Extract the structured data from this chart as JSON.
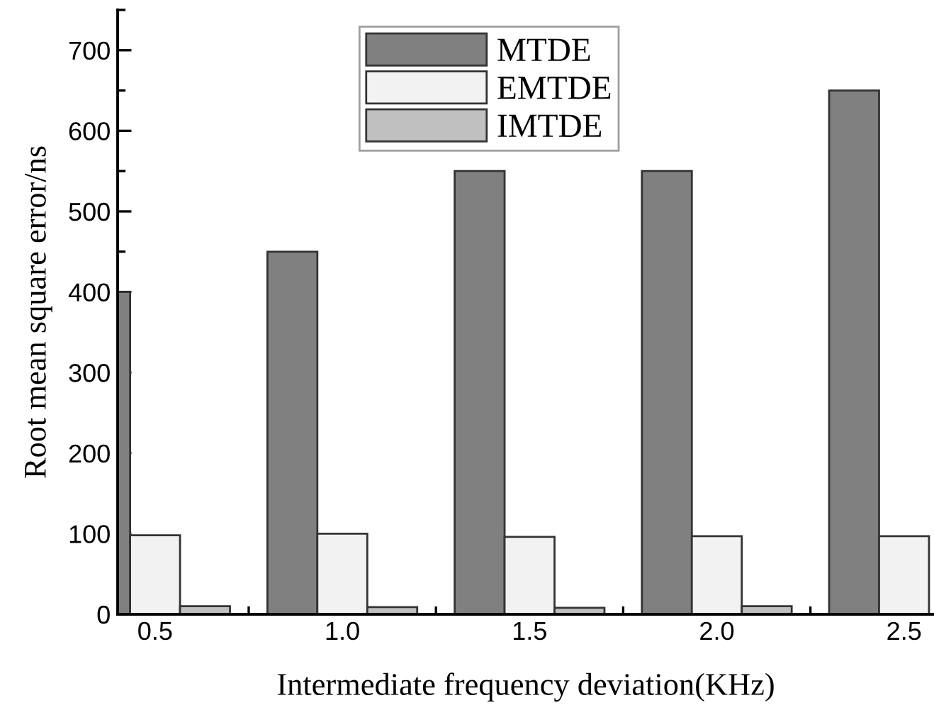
{
  "chart_data": {
    "type": "bar",
    "xlabel": "Intermediate frequency deviation(KHz)",
    "ylabel": "Root mean square error/ns",
    "x": [
      0.5,
      1.0,
      1.5,
      2.0,
      2.5
    ],
    "series": [
      {
        "name": "MTDE",
        "color": "#808080",
        "values": [
          400,
          450,
          550,
          550,
          650
        ]
      },
      {
        "name": "EMTDE",
        "color": "#f2f2f2",
        "values": [
          98,
          100,
          96,
          97,
          97
        ]
      },
      {
        "name": "IMTDE",
        "color": "#c0c0c0",
        "values": [
          10,
          9,
          8,
          10,
          null
        ]
      }
    ],
    "xlim": [
      0.4,
      2.58
    ],
    "xticks": [
      {
        "value": 0.5,
        "label": "0.5"
      },
      {
        "value": 1.0,
        "label": "1.0"
      },
      {
        "value": 1.5,
        "label": "1.5"
      },
      {
        "value": 2.0,
        "label": "2.0"
      },
      {
        "value": 2.5,
        "label": "2.5"
      }
    ],
    "ylim": [
      0,
      750
    ],
    "yticks": [
      0,
      100,
      200,
      300,
      400,
      500,
      600,
      700
    ],
    "legend": "top",
    "grid": false
  }
}
